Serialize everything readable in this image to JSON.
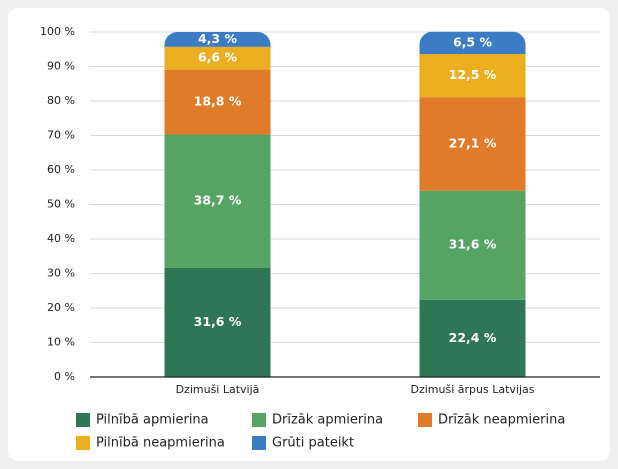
{
  "chart_data": {
    "type": "stacked_bar",
    "categories": [
      "Dzimuši Latvijā",
      "Dzimuši ārpus Latvijas"
    ],
    "series": [
      {
        "name": "Pilnībā apmierina",
        "color": "#2f7657",
        "values": [
          31.6,
          22.4
        ],
        "value_labels": [
          "31,6 %",
          "22,4 %"
        ]
      },
      {
        "name": "Drīzāk apmierina",
        "color": "#56a464",
        "values": [
          38.7,
          31.6
        ],
        "value_labels": [
          "38,7 %",
          "31,6 %"
        ]
      },
      {
        "name": "Drīzāk neapmierina",
        "color": "#e07b29",
        "values": [
          18.8,
          27.1
        ],
        "value_labels": [
          "18,8 %",
          "27,1 %"
        ]
      },
      {
        "name": "Pilnībā neapmierina",
        "color": "#ebae1f",
        "values": [
          6.6,
          12.5
        ],
        "value_labels": [
          "6,6 %",
          "12,5 %"
        ]
      },
      {
        "name": "Grūti pateikt",
        "color": "#3b7cc5",
        "values": [
          4.3,
          6.5
        ],
        "value_labels": [
          "4,3 %",
          "6,5 %"
        ]
      }
    ],
    "ylim": [
      0,
      100
    ],
    "yticks": [
      {
        "value": 0,
        "label": "0 %"
      },
      {
        "value": 10,
        "label": "10 %"
      },
      {
        "value": 20,
        "label": "20 %"
      },
      {
        "value": 30,
        "label": "30 %"
      },
      {
        "value": 40,
        "label": "40 %"
      },
      {
        "value": 50,
        "label": "50 %"
      },
      {
        "value": 60,
        "label": "60 %"
      },
      {
        "value": 70,
        "label": "70 %"
      },
      {
        "value": 80,
        "label": "80 %"
      },
      {
        "value": 90,
        "label": "90 %"
      },
      {
        "value": 100,
        "label": "100 %"
      }
    ],
    "grid": true,
    "legend": "bottom"
  }
}
